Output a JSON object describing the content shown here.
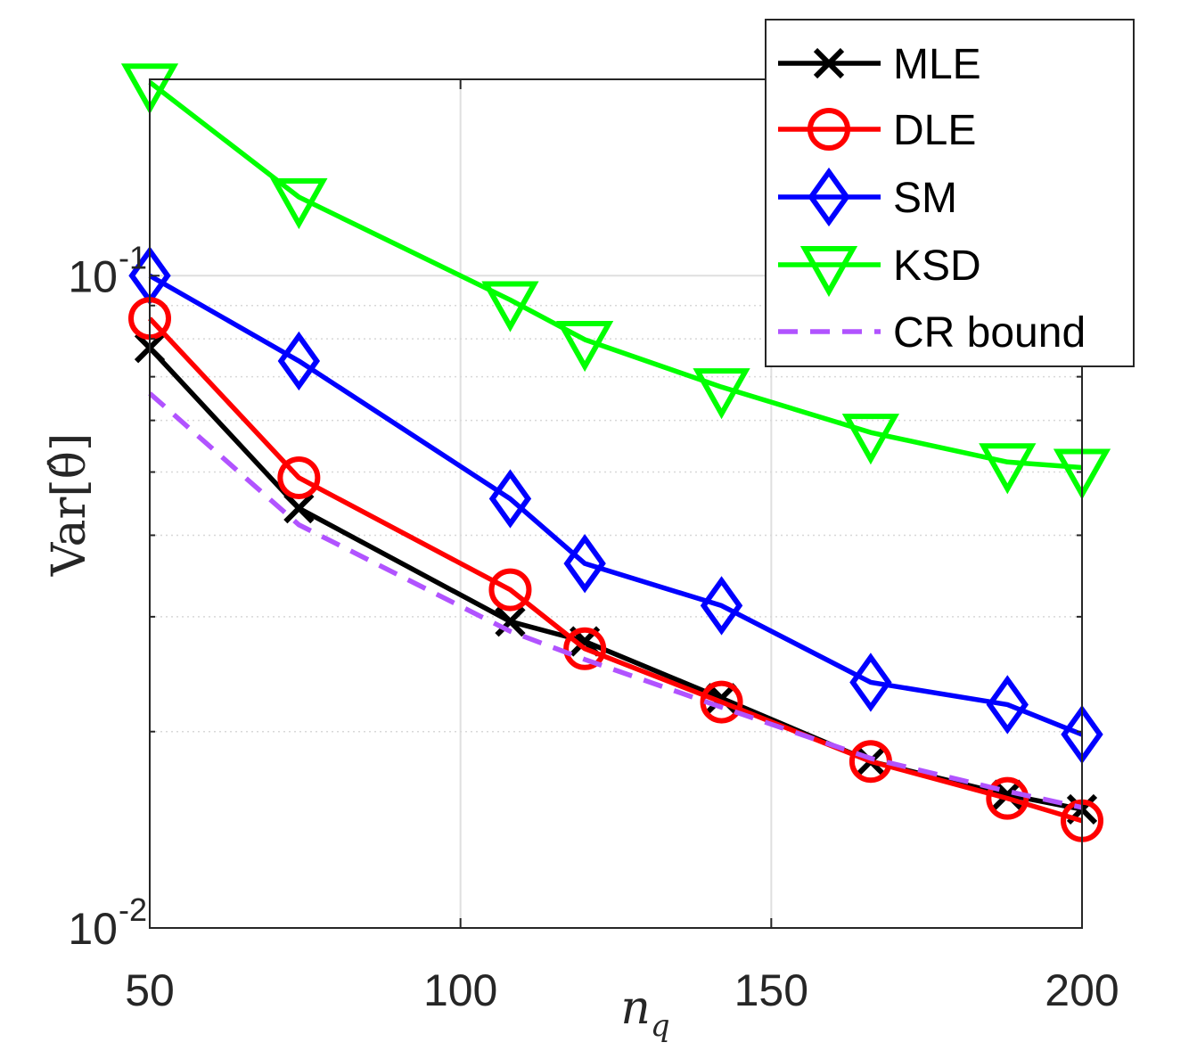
{
  "chart_data": {
    "type": "line",
    "title": "",
    "xlabel": "n_q",
    "ylabel": "Var[θ̂]",
    "xscale": "linear",
    "yscale": "log",
    "xlim": [
      50,
      200
    ],
    "ylim": [
      0.01,
      0.2
    ],
    "xticks": [
      50,
      100,
      150,
      200
    ],
    "xtick_labels": [
      "50",
      "100",
      "150",
      "200"
    ],
    "yticks": [
      0.01,
      0.1
    ],
    "ytick_labels": [
      {
        "base": "10",
        "exp": "-2"
      },
      {
        "base": "10",
        "exp": "-1"
      }
    ],
    "grid": true,
    "legend_position": "top-right",
    "series": [
      {
        "name": "MLE",
        "color": "#000000",
        "marker": "x",
        "dash": "solid",
        "x": [
          50,
          74,
          108,
          120,
          142,
          166,
          188,
          200
        ],
        "y": [
          0.0775,
          0.044,
          0.0295,
          0.0275,
          0.0225,
          0.018,
          0.016,
          0.0152
        ]
      },
      {
        "name": "DLE",
        "color": "#ff0000",
        "marker": "o",
        "dash": "solid",
        "x": [
          50,
          74,
          108,
          120,
          142,
          166,
          188,
          200
        ],
        "y": [
          0.086,
          0.049,
          0.033,
          0.0268,
          0.0222,
          0.018,
          0.0158,
          0.0146
        ]
      },
      {
        "name": "SM",
        "color": "#0000ff",
        "marker": "diamond",
        "dash": "solid",
        "x": [
          50,
          74,
          108,
          120,
          142,
          166,
          188,
          200
        ],
        "y": [
          0.1,
          0.074,
          0.0455,
          0.0362,
          0.0312,
          0.0238,
          0.022,
          0.0198
        ]
      },
      {
        "name": "KSD",
        "color": "#00ff00",
        "marker": "triangle-down",
        "dash": "solid",
        "x": [
          50,
          74,
          108,
          120,
          142,
          166,
          188,
          200
        ],
        "y": [
          0.198,
          0.132,
          0.0918,
          0.0798,
          0.0675,
          0.0575,
          0.0518,
          0.0508
        ]
      },
      {
        "name": "CR bound",
        "color": "#b153ff",
        "marker": "none",
        "dash": "dashed",
        "x": [
          50,
          74,
          108,
          120,
          142,
          166,
          188,
          200
        ],
        "y": [
          0.066,
          0.0415,
          0.0285,
          0.0258,
          0.0218,
          0.0182,
          0.0162,
          0.0153
        ]
      }
    ]
  }
}
